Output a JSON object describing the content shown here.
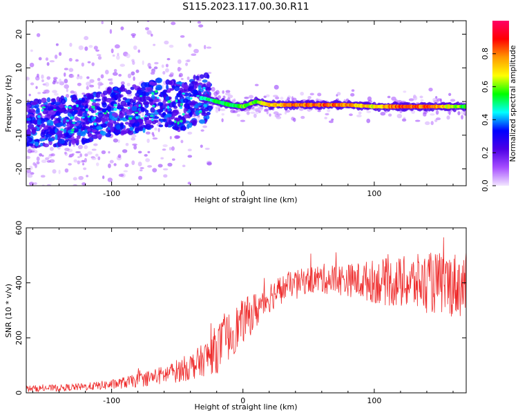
{
  "title": "S115.2023.117.00.30.R11",
  "chart_data": [
    {
      "type": "heatmap",
      "xlabel": "Height of straight line (km)",
      "ylabel": "Frequency (Hz)",
      "xlim": [
        -165,
        170
      ],
      "ylim": [
        -25,
        24
      ],
      "x_ticks": [
        -100,
        0,
        100
      ],
      "y_ticks": [
        -20,
        -10,
        0,
        10,
        20
      ],
      "grid": false,
      "colorbar": {
        "label": "Normalized spectral amplitude",
        "range": [
          0,
          1
        ],
        "ticks": [
          0.0,
          0.2,
          0.4,
          0.6,
          0.8
        ],
        "colors": [
          "#f2e6ff",
          "#a64dff",
          "#4d00e6",
          "#0000ff",
          "#00ffff",
          "#00ff00",
          "#ffff00",
          "#ff9900",
          "#ff0000",
          "#ff0066"
        ]
      },
      "ridge": {
        "x": [
          -165,
          -140,
          -120,
          -100,
          -80,
          -60,
          -45,
          -35,
          -30,
          -20,
          -10,
          0,
          10,
          20,
          40,
          60,
          80,
          100,
          120,
          140,
          160,
          170
        ],
        "y": [
          -7,
          -6,
          -5,
          -3,
          -2,
          0,
          -2,
          1,
          1,
          0,
          -1,
          -1.5,
          0,
          -1,
          -1,
          -1,
          -1,
          -1.5,
          -1.5,
          -1.5,
          -1.5,
          -1.5
        ],
        "amplitude": [
          0.25,
          0.28,
          0.3,
          0.32,
          0.34,
          0.36,
          0.38,
          0.5,
          0.5,
          0.55,
          0.55,
          0.6,
          0.6,
          0.75,
          0.85,
          0.88,
          0.82,
          0.7,
          0.88,
          0.85,
          0.7,
          0.55
        ]
      }
    },
    {
      "type": "line",
      "xlabel": "Height of straight line (km)",
      "ylabel": "SNR (10 * v/v)",
      "xlim": [
        -165,
        170
      ],
      "ylim": [
        0,
        600
      ],
      "x_ticks": [
        -100,
        0,
        100
      ],
      "y_ticks": [
        0,
        200,
        400,
        600
      ],
      "grid": false,
      "color": "#ee2b2b",
      "envelope": {
        "x": [
          -165,
          -140,
          -120,
          -100,
          -80,
          -60,
          -40,
          -30,
          -20,
          -10,
          0,
          10,
          20,
          30,
          40,
          50,
          60,
          80,
          100,
          120,
          140,
          160,
          170
        ],
        "mean": [
          15,
          18,
          22,
          30,
          45,
          65,
          95,
          120,
          160,
          210,
          260,
          300,
          350,
          380,
          400,
          410,
          415,
          410,
          405,
          400,
          400,
          395,
          390
        ],
        "spread": [
          12,
          12,
          14,
          18,
          25,
          35,
          50,
          60,
          90,
          90,
          80,
          70,
          60,
          50,
          45,
          50,
          55,
          60,
          80,
          95,
          110,
          120,
          120
        ]
      }
    }
  ]
}
